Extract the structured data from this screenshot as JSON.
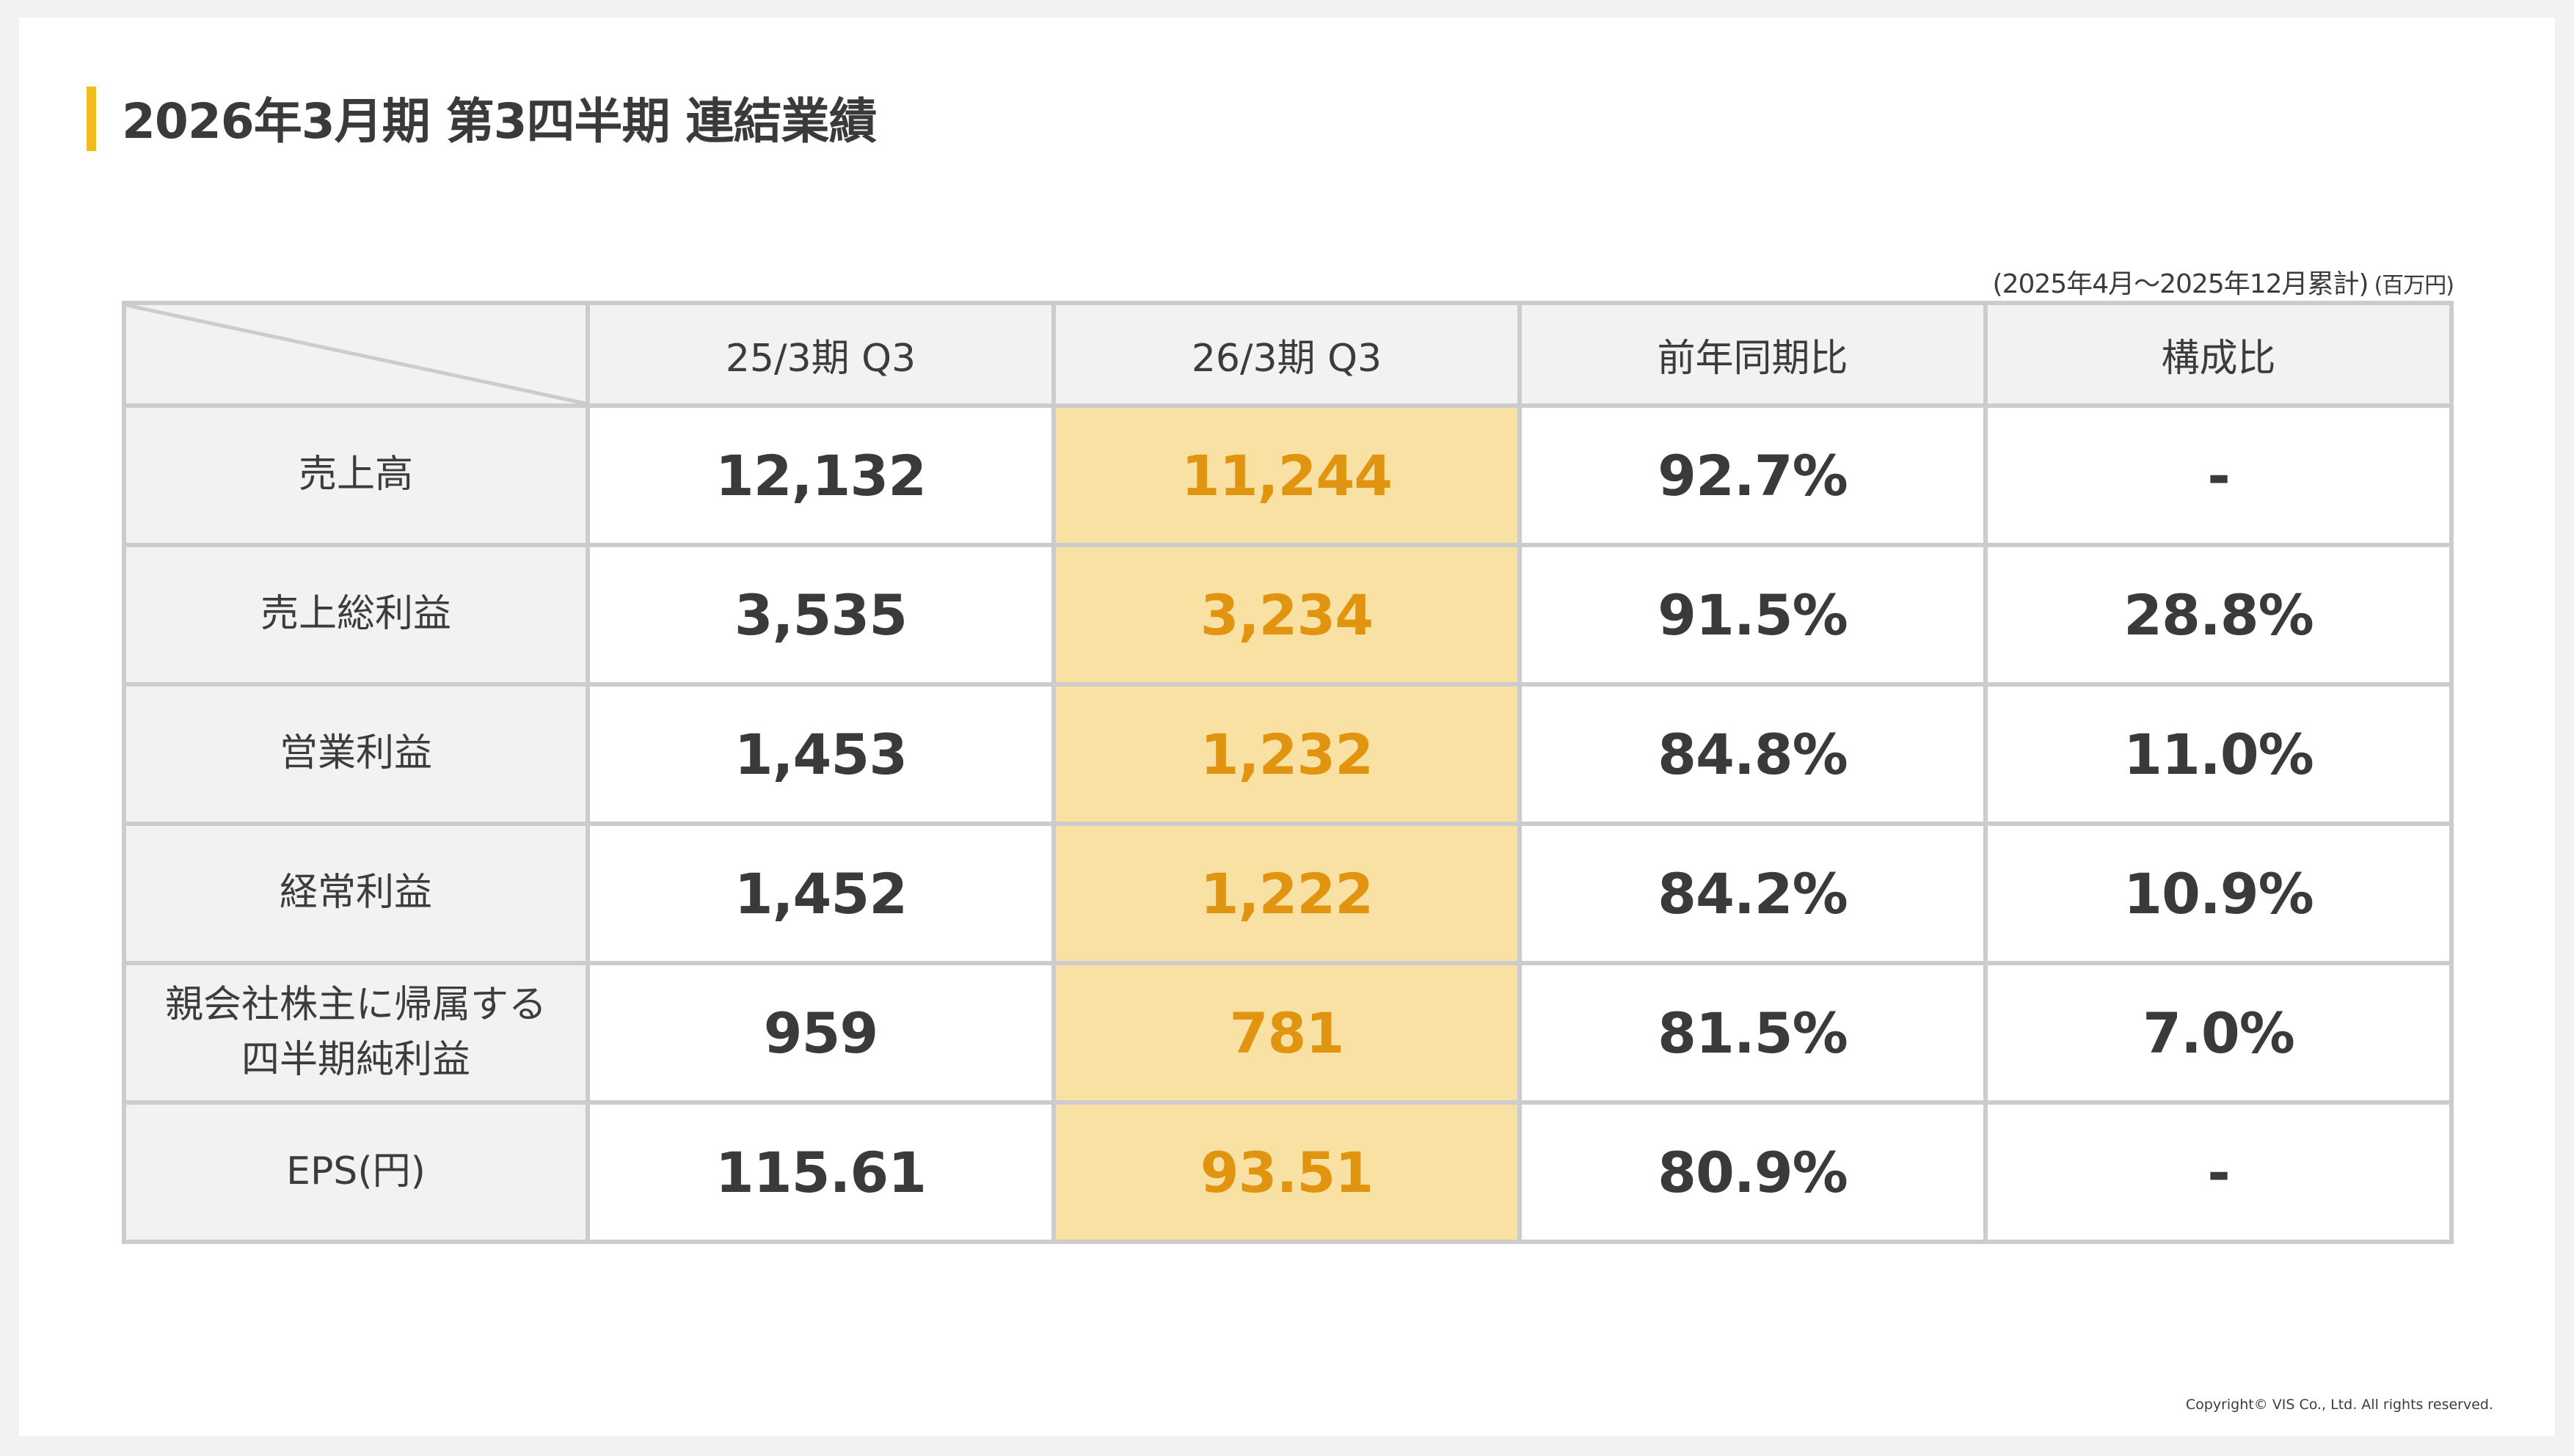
{
  "title": "2026年3月期 第3四半期 連結業績",
  "unit_note": {
    "period": "(2025年4月〜2025年12月累計)",
    "unit": "(百万円)"
  },
  "colors": {
    "accent": "#efbd1c",
    "highlight_bg": "#f8e1a2",
    "highlight_text": "#e0940f",
    "header_bg": "#f2f2f2",
    "border": "#cccccc"
  },
  "table": {
    "headers": [
      "25/3期 Q3",
      "26/3期 Q3",
      "前年同期比",
      "構成比"
    ],
    "rows": [
      {
        "label_line1": "売上高",
        "label_line2": "",
        "prev": "12,132",
        "curr": "11,244",
        "yoy": "92.7%",
        "ratio": "-"
      },
      {
        "label_line1": "売上総利益",
        "label_line2": "",
        "prev": "3,535",
        "curr": "3,234",
        "yoy": "91.5%",
        "ratio": "28.8%"
      },
      {
        "label_line1": "営業利益",
        "label_line2": "",
        "prev": "1,453",
        "curr": "1,232",
        "yoy": "84.8%",
        "ratio": "11.0%"
      },
      {
        "label_line1": "経常利益",
        "label_line2": "",
        "prev": "1,452",
        "curr": "1,222",
        "yoy": "84.2%",
        "ratio": "10.9%"
      },
      {
        "label_line1": "親会社株主に帰属する",
        "label_line2": "四半期純利益",
        "prev": "959",
        "curr": "781",
        "yoy": "81.5%",
        "ratio": "7.0%"
      },
      {
        "label_line1": "EPS(円)",
        "label_line2": "",
        "prev": "115.61",
        "curr": "93.51",
        "yoy": "80.9%",
        "ratio": "-"
      }
    ]
  },
  "copyright": "Copyright© VIS Co., Ltd. All rights reserved."
}
